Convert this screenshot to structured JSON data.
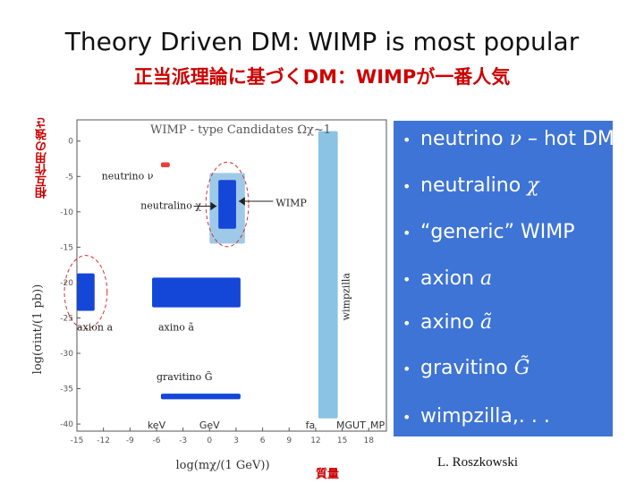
{
  "slide": {
    "title": "Theory Driven DM: WIMP is most popular",
    "subtitle": "正当派理論に基づくDM：WIMPが一番人気",
    "vertical_label": "相互作用の強さ",
    "mass_label": "質量",
    "credit": "L. Roszkowski"
  },
  "legend": {
    "items": [
      {
        "bullet": "•",
        "text": "neutrino ",
        "symbol": "ν",
        "suffix": " – hot DM"
      },
      {
        "bullet": "•",
        "text": "neutralino ",
        "symbol": "χ",
        "suffix": ""
      },
      {
        "bullet": "•",
        "text": "“generic” WIMP",
        "symbol": "",
        "suffix": ""
      },
      {
        "bullet": "•",
        "text": "axion ",
        "symbol": "a",
        "suffix": ""
      },
      {
        "bullet": "•",
        "text": "axino ",
        "symbol": "ã",
        "suffix": ""
      },
      {
        "bullet": "•",
        "text": "gravitino ",
        "symbol": "G̃",
        "suffix": ""
      },
      {
        "bullet": "•",
        "text": "wimpzilla,. . .",
        "symbol": "",
        "suffix": ""
      }
    ],
    "bg_color": "#3e74d6"
  },
  "chart_data": {
    "type": "region",
    "title": "WIMP - type Candidates  Ωχ~1",
    "xlabel": "log(mχ/(1 GeV))",
    "ylabel": "log(σint/(1 pb))",
    "xlim": [
      -15,
      20
    ],
    "ylim": [
      -41,
      3
    ],
    "xticks": [
      -15,
      -12,
      -9,
      -6,
      -3,
      0,
      3,
      6,
      9,
      12,
      15,
      18
    ],
    "yticks": [
      0,
      -5,
      -10,
      -15,
      -20,
      -25,
      -30,
      -35,
      -40
    ],
    "regions": [
      {
        "name": "neutrino",
        "label": "neutrino ν",
        "x": [
          -5.5,
          -4.5
        ],
        "y": [
          -3.7,
          -3.0
        ],
        "color": "#e8403c"
      },
      {
        "name": "neutralino",
        "label": "neutralino χ",
        "x": [
          1,
          3
        ],
        "y": [
          -12.4,
          -5.5
        ],
        "color": "#1446d8"
      },
      {
        "name": "generic-wimp",
        "label": "WIMP",
        "x": [
          0,
          4
        ],
        "y": [
          -14.5,
          -4.5
        ],
        "color": "#9fc9e8"
      },
      {
        "name": "axion",
        "label": "axion a",
        "x": [
          -15,
          -13
        ],
        "y": [
          -24,
          -18.7
        ],
        "color": "#1446d8"
      },
      {
        "name": "axino",
        "label": "axino ã",
        "x": [
          -6.5,
          3.5
        ],
        "y": [
          -23.5,
          -19.3
        ],
        "color": "#1446d8"
      },
      {
        "name": "gravitino",
        "label": "gravitino G̃",
        "x": [
          -5.5,
          3.5
        ],
        "y": [
          -36.5,
          -35.7
        ],
        "color": "#1446d8"
      },
      {
        "name": "wimpzilla",
        "label": "wimpzilla",
        "x": [
          12.3,
          14.5
        ],
        "y": [
          -39.2,
          1.4
        ],
        "color": "#8ac3e3"
      }
    ],
    "highlights": [
      "neutralino",
      "axion"
    ],
    "annotations": [
      {
        "text": "keV",
        "x": -6,
        "y": -40
      },
      {
        "text": "GeV",
        "x": 0,
        "y": -40
      },
      {
        "text": "fa",
        "x": 11.4,
        "y": -40
      },
      {
        "text": "MGUT",
        "x": 16,
        "y": -40
      },
      {
        "text": "MP",
        "x": 19,
        "y": -40
      }
    ]
  }
}
